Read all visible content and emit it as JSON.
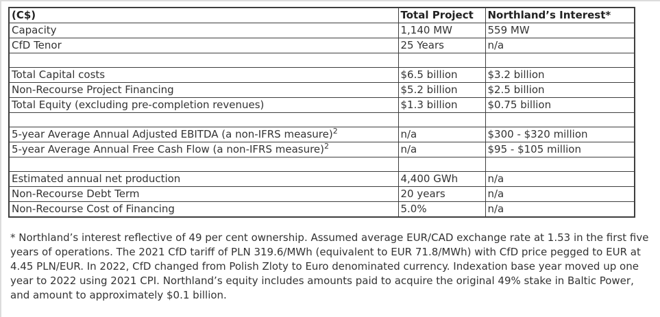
{
  "table": {
    "columns": [
      "(C$)",
      "Total Project",
      "Northland’s Interest*"
    ],
    "rows": [
      {
        "label": "Capacity",
        "total": "1,140 MW",
        "interest": "559 MW"
      },
      {
        "label": "CfD Tenor",
        "total": "25 Years",
        "interest": "n/a"
      },
      {
        "spacer": true
      },
      {
        "label": "Total Capital costs",
        "total": "$6.5 billion",
        "interest": "$3.2 billion"
      },
      {
        "label": "Non-Recourse Project Financing",
        "total": "$5.2 billion",
        "interest": "$2.5 billion"
      },
      {
        "label": "Total Equity (excluding pre-completion revenues)",
        "total": "$1.3 billion",
        "interest": "$0.75 billion"
      },
      {
        "spacer": true
      },
      {
        "label": "5-year Average Annual Adjusted EBITDA (a non-IFRS measure)",
        "sup": "2",
        "total": "n/a",
        "interest": "$300 - $320 million"
      },
      {
        "label": "5-year Average Annual Free Cash Flow (a non-IFRS measure)",
        "sup": "2",
        "total": "n/a",
        "interest": "$95 - $105 million"
      },
      {
        "spacer": true
      },
      {
        "label": "Estimated annual net production",
        "total": "4,400 GWh",
        "interest": "n/a"
      },
      {
        "label": "Non-Recourse Debt Term",
        "total": "20 years",
        "interest": "n/a"
      },
      {
        "label": "Non-Recourse Cost of Financing",
        "total": "5.0%",
        "interest": "n/a"
      }
    ]
  },
  "footnote": "* Northland’s interest reflective of 49 per cent ownership. Assumed average EUR/CAD exchange rate at 1.53 in the first five years of operations. The 2021 CfD tariff of PLN 319.6/MWh (equivalent to EUR 71.8/MWh) with CfD price pegged to EUR at 4.45 PLN/EUR. In 2022, CfD changed from Polish Zloty to Euro denominated currency. Indexation base year moved up one year to 2022 using 2021 CPI. Northland’s equity includes amounts paid to acquire the original 49% stake in Baltic Power, and amount to approximately $0.1 billion.",
  "colors": {
    "border": "#3d3d3d",
    "page_edge": "#dcdcdc",
    "text": "#333333"
  }
}
